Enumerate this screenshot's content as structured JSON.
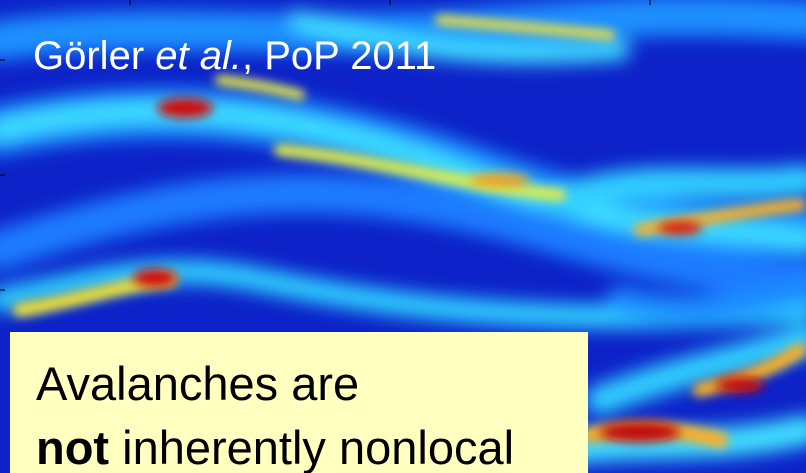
{
  "citation": {
    "author": "Görler ",
    "etal": "et al.",
    "rest": ", PoP 2011"
  },
  "caption": {
    "line1": "Avalanches are",
    "bold": "not",
    "rest": " inherently nonlocal"
  }
}
